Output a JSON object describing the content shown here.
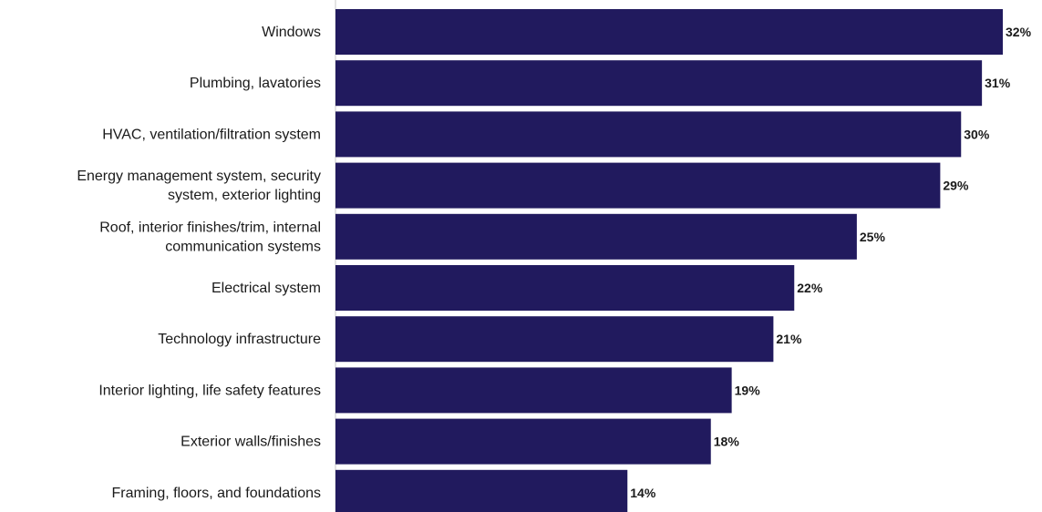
{
  "colors": {
    "bar": "#211a5e",
    "text": "#1a1a1a",
    "axis": "#c8c8c8",
    "background": "#ffffff"
  },
  "chart_data": {
    "type": "bar",
    "orientation": "horizontal",
    "title": "",
    "xlabel": "",
    "ylabel": "",
    "xlim": [
      0,
      32
    ],
    "grid": false,
    "legend": "none",
    "value_suffix": "%",
    "categories": [
      [
        "Windows"
      ],
      [
        "Plumbing, lavatories"
      ],
      [
        "HVAC, ventilation/filtration system"
      ],
      [
        "Energy management system, security",
        "system, exterior lighting"
      ],
      [
        "Roof, interior finishes/trim, internal",
        "communication systems"
      ],
      [
        "Electrical system"
      ],
      [
        "Technology infrastructure"
      ],
      [
        "Interior lighting, life safety features"
      ],
      [
        "Exterior walls/finishes"
      ],
      [
        "Framing, floors, and foundations"
      ]
    ],
    "values": [
      32,
      31,
      30,
      29,
      25,
      22,
      21,
      19,
      18,
      14
    ],
    "value_labels": [
      "32%",
      "31%",
      "30%",
      "29%",
      "25%",
      "22%",
      "21%",
      "19%",
      "18%",
      "14%"
    ]
  }
}
